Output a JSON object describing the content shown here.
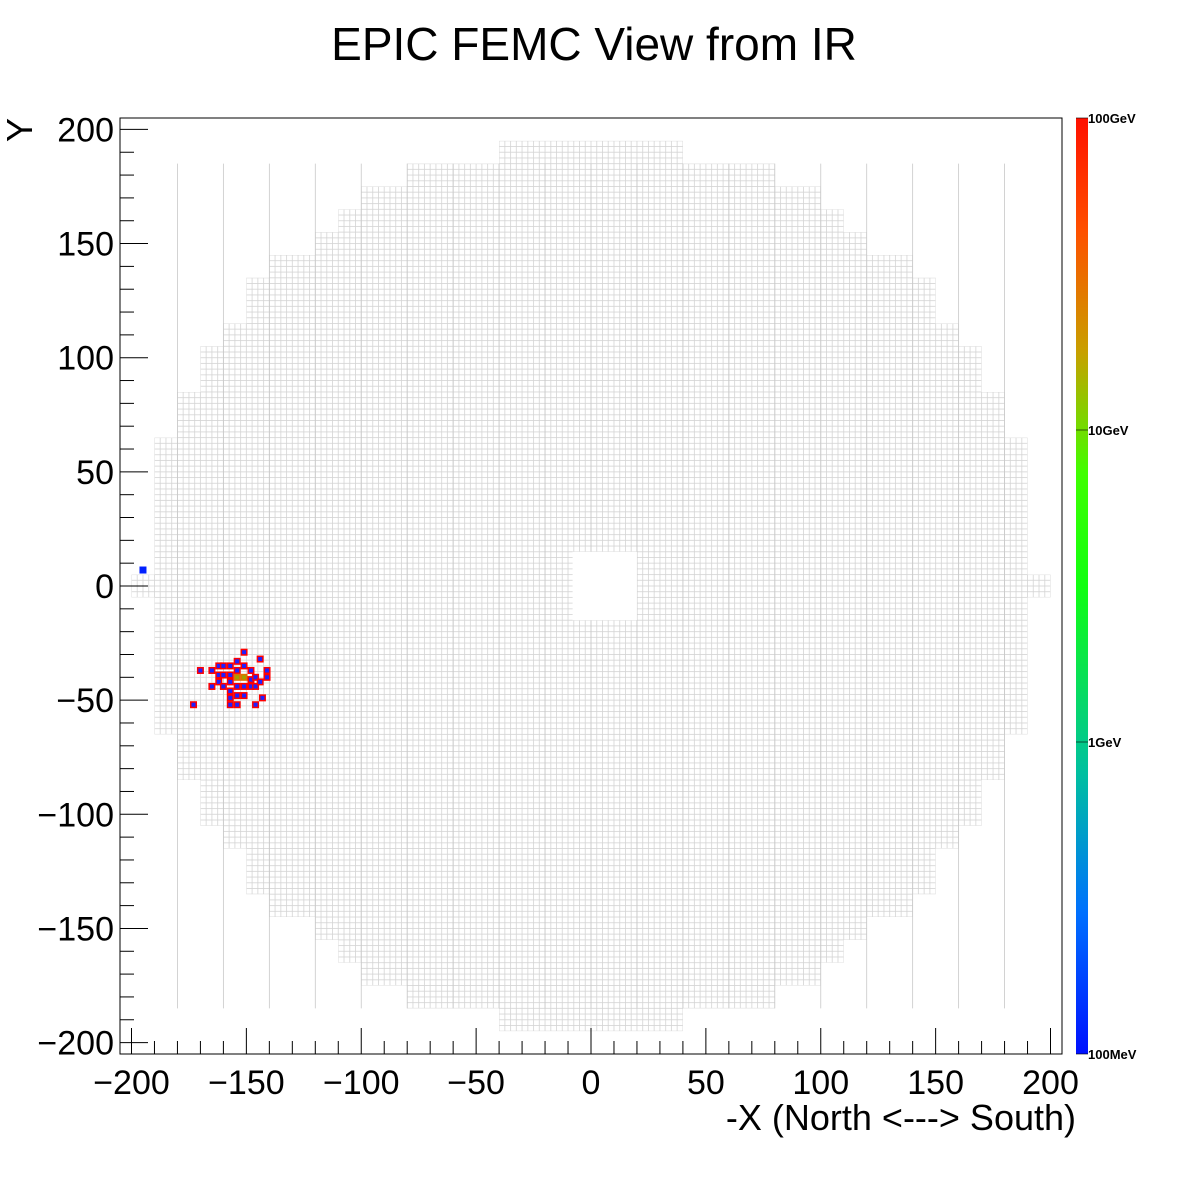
{
  "chart_data": {
    "type": "heatmap",
    "title": "EPIC FEMC View from IR",
    "xlabel": "-X (North <---> South)",
    "ylabel": "Y",
    "xlim": [
      -205,
      205
    ],
    "ylim": [
      -205,
      205
    ],
    "x_ticks": [
      "−200",
      "−150",
      "−100",
      "−50",
      "0",
      "50",
      "100",
      "150",
      "200"
    ],
    "x_tick_values": [
      -200,
      -150,
      -100,
      -50,
      0,
      50,
      100,
      150,
      200
    ],
    "y_ticks": [
      "−200",
      "−150",
      "−100",
      "−50",
      "0",
      "50",
      "100",
      "150",
      "200"
    ],
    "y_tick_values": [
      -200,
      -150,
      -100,
      -50,
      0,
      50,
      100,
      150,
      200
    ],
    "grid": false,
    "colorbar": {
      "scale": "log",
      "labels": [
        "100GeV",
        "10GeV",
        "1GeV",
        "100MeV"
      ],
      "label_values_gev": [
        100,
        10,
        1,
        0.1
      ],
      "colors": [
        "#ff1000",
        "#c8a000",
        "#10ff00",
        "#00d080",
        "#0050ff",
        "#0010ff"
      ]
    },
    "detector": {
      "cell_pitch": 2.5,
      "outer_radius_approx": 195,
      "beam_hole": {
        "x": [
          -8,
          20
        ],
        "y": [
          -15,
          15
        ]
      },
      "cell_color": "#d4d4d4"
    },
    "hits": [
      {
        "x": -195,
        "y": 7,
        "color": "#0020ff"
      },
      {
        "x": -173,
        "y": -52,
        "color": "#ff0000",
        "inner": "#2020ff"
      },
      {
        "x": -170,
        "y": -37,
        "color": "#ff0000",
        "inner": "#2020ff"
      },
      {
        "x": -165,
        "y": -44,
        "color": "#ff0000",
        "inner": "#2020ff"
      },
      {
        "x": -165,
        "y": -37,
        "color": "#ff0000",
        "inner": "#2020ff"
      },
      {
        "x": -162,
        "y": -35,
        "color": "#ff0000",
        "inner": "#2020ff"
      },
      {
        "x": -162,
        "y": -39,
        "color": "#ff0000",
        "inner": "#2020ff"
      },
      {
        "x": -162,
        "y": -42,
        "color": "#ff0000",
        "inner": "#2020ff"
      },
      {
        "x": -160,
        "y": -35,
        "color": "#ff0000",
        "inner": "#2020ff"
      },
      {
        "x": -160,
        "y": -39,
        "color": "#ff0000",
        "inner": "#2020ff"
      },
      {
        "x": -160,
        "y": -44,
        "color": "#ff0000",
        "inner": "#2020ff"
      },
      {
        "x": -157,
        "y": -35,
        "color": "#ff0000",
        "inner": "#2020ff"
      },
      {
        "x": -157,
        "y": -39,
        "color": "#ff0000",
        "inner": "#2020ff"
      },
      {
        "x": -157,
        "y": -42,
        "color": "#ff0000",
        "inner": "#2020ff"
      },
      {
        "x": -157,
        "y": -46,
        "color": "#ff0000",
        "inner": "#2020ff"
      },
      {
        "x": -157,
        "y": -49,
        "color": "#ff0000",
        "inner": "#2020ff"
      },
      {
        "x": -157,
        "y": -52,
        "color": "#ff0000",
        "inner": "#2020ff"
      },
      {
        "x": -154,
        "y": -33,
        "color": "#ff0000",
        "inner": "#2020ff"
      },
      {
        "x": -154,
        "y": -37,
        "color": "#ff0000",
        "inner": "#2020ff"
      },
      {
        "x": -154,
        "y": -40,
        "color": "#e07000",
        "inner": "#a0a000"
      },
      {
        "x": -154,
        "y": -44,
        "color": "#ff0000",
        "inner": "#2020ff"
      },
      {
        "x": -154,
        "y": -48,
        "color": "#ff0000",
        "inner": "#2020ff"
      },
      {
        "x": -154,
        "y": -52,
        "color": "#ff0000",
        "inner": "#2020ff"
      },
      {
        "x": -151,
        "y": -29,
        "color": "#ff0000",
        "inner": "#2020ff"
      },
      {
        "x": -151,
        "y": -35,
        "color": "#ff0000",
        "inner": "#2020ff"
      },
      {
        "x": -151,
        "y": -40,
        "color": "#e07000",
        "inner": "#a0a000"
      },
      {
        "x": -151,
        "y": -44,
        "color": "#ff0000",
        "inner": "#2020ff"
      },
      {
        "x": -151,
        "y": -48,
        "color": "#ff0000",
        "inner": "#2020ff"
      },
      {
        "x": -148,
        "y": -37,
        "color": "#ff0000",
        "inner": "#2020ff"
      },
      {
        "x": -148,
        "y": -41,
        "color": "#ff0000",
        "inner": "#2020ff"
      },
      {
        "x": -148,
        "y": -44,
        "color": "#ff0000",
        "inner": "#2020ff"
      },
      {
        "x": -146,
        "y": -40,
        "color": "#ff0000",
        "inner": "#2020ff"
      },
      {
        "x": -146,
        "y": -44,
        "color": "#ff0000",
        "inner": "#2020ff"
      },
      {
        "x": -146,
        "y": -52,
        "color": "#ff0000",
        "inner": "#2020ff"
      },
      {
        "x": -144,
        "y": -32,
        "color": "#ff0000",
        "inner": "#2020ff"
      },
      {
        "x": -144,
        "y": -42,
        "color": "#ff0000",
        "inner": "#2020ff"
      },
      {
        "x": -143,
        "y": -49,
        "color": "#ff0000",
        "inner": "#2020ff"
      },
      {
        "x": -141,
        "y": -37,
        "color": "#ff0000",
        "inner": "#2020ff"
      },
      {
        "x": -141,
        "y": -40,
        "color": "#ff0000",
        "inner": "#2020ff"
      }
    ]
  }
}
